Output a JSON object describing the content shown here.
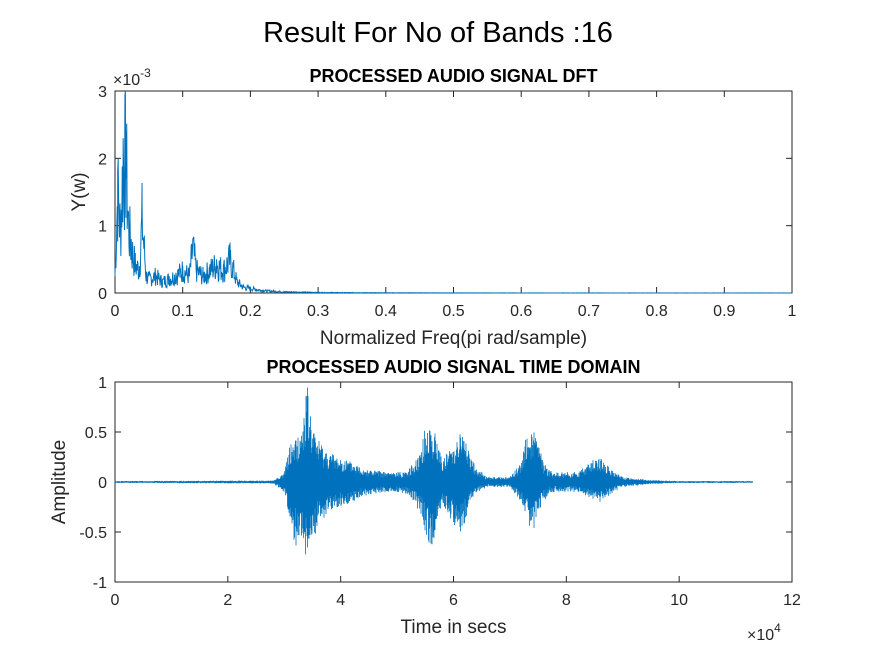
{
  "figure_title": "Result For No of Bands :16",
  "chart_data": [
    {
      "type": "line",
      "title": "PROCESSED AUDIO SIGNAL DFT",
      "xlabel": "Normalized Freq(pi rad/sample)",
      "ylabel": "Y(w)",
      "xlim": [
        0,
        1
      ],
      "ylim": [
        0,
        0.003
      ],
      "y_exponent_label": "×10",
      "y_exponent_power": "-3",
      "x_ticks": [
        "0",
        "0.1",
        "0.2",
        "0.3",
        "0.4",
        "0.5",
        "0.6",
        "0.7",
        "0.8",
        "0.9",
        "1"
      ],
      "y_ticks": [
        "0",
        "1",
        "2",
        "3"
      ],
      "x_tick_values": [
        0,
        0.1,
        0.2,
        0.3,
        0.4,
        0.5,
        0.6,
        0.7,
        0.8,
        0.9,
        1
      ],
      "y_tick_values": [
        0,
        0.001,
        0.002,
        0.003
      ],
      "grid": false,
      "line_color": "#0072BD",
      "series": [
        {
          "x": [
            0,
            0.004,
            0.008,
            0.012,
            0.016,
            0.02,
            0.024,
            0.03,
            0.036,
            0.04,
            0.046,
            0.05,
            0.06,
            0.07,
            0.08,
            0.09,
            0.1,
            0.11,
            0.115,
            0.12,
            0.13,
            0.14,
            0.15,
            0.16,
            0.17,
            0.18,
            0.19,
            0.2,
            0.22,
            0.25,
            0.3,
            0.35,
            0.4,
            0.5,
            0.6,
            0.7,
            0.8,
            0.9,
            1
          ],
          "y": [
            0.0003,
            0.0018,
            0.0011,
            0.0023,
            0.0024,
            0.0012,
            0.0008,
            0.0005,
            0.0004,
            0.0013,
            0.0003,
            0.00025,
            0.0003,
            0.0002,
            0.00025,
            0.0003,
            0.0004,
            0.0003,
            0.0008,
            0.0004,
            0.0003,
            0.0004,
            0.0005,
            0.0004,
            0.0006,
            0.0002,
            0.0001,
            8e-05,
            4e-05,
            2e-05,
            1e-05,
            6e-06,
            4e-06,
            2e-06,
            1e-06,
            1e-06,
            1e-06,
            1e-06,
            1e-06
          ]
        }
      ]
    },
    {
      "type": "line",
      "title": "PROCESSED AUDIO SIGNAL TIME DOMAIN",
      "xlabel": "Time in secs",
      "ylabel": "Amplitude",
      "xlim": [
        0,
        120000
      ],
      "ylim": [
        -1,
        1
      ],
      "x_exponent_label": "×10",
      "x_exponent_power": "4",
      "x_ticks": [
        "0",
        "2",
        "4",
        "6",
        "8",
        "10",
        "12"
      ],
      "y_ticks": [
        "-1",
        "-0.5",
        "0",
        "0.5",
        "1"
      ],
      "x_tick_values": [
        0,
        20000,
        40000,
        60000,
        80000,
        100000,
        120000
      ],
      "y_tick_values": [
        -1,
        -0.5,
        0,
        0.5,
        1
      ],
      "grid": false,
      "line_color": "#0072BD",
      "series": [
        {
          "envelope_x": [
            0,
            28000,
            30000,
            31000,
            32000,
            33000,
            34000,
            35000,
            36000,
            37000,
            38000,
            40000,
            42000,
            44000,
            46000,
            48000,
            50000,
            52000,
            54000,
            55000,
            56000,
            57000,
            58000,
            59000,
            60000,
            61000,
            62000,
            63000,
            64000,
            65000,
            66000,
            67000,
            68000,
            70000,
            72000,
            73000,
            74000,
            75000,
            76000,
            77000,
            78000,
            80000,
            82000,
            84000,
            86000,
            88000,
            90000,
            95000,
            100000,
            105000,
            113000
          ],
          "envelope_upper": [
            0.01,
            0.015,
            0.1,
            0.38,
            0.45,
            0.5,
            1.0,
            0.55,
            0.45,
            0.35,
            0.3,
            0.25,
            0.2,
            0.15,
            0.12,
            0.1,
            0.1,
            0.12,
            0.3,
            0.55,
            0.6,
            0.45,
            0.25,
            0.3,
            0.4,
            0.5,
            0.5,
            0.25,
            0.15,
            0.1,
            0.05,
            0.05,
            0.05,
            0.05,
            0.2,
            0.5,
            0.55,
            0.4,
            0.2,
            0.12,
            0.1,
            0.1,
            0.1,
            0.2,
            0.25,
            0.12,
            0.05,
            0.02,
            0.01,
            0.01,
            0.01
          ],
          "envelope_lower": [
            -0.01,
            -0.015,
            -0.1,
            -0.38,
            -0.65,
            -0.55,
            -0.85,
            -0.6,
            -0.45,
            -0.38,
            -0.3,
            -0.25,
            -0.2,
            -0.15,
            -0.12,
            -0.1,
            -0.1,
            -0.12,
            -0.3,
            -0.5,
            -0.7,
            -0.45,
            -0.25,
            -0.3,
            -0.45,
            -0.6,
            -0.4,
            -0.2,
            -0.12,
            -0.08,
            -0.05,
            -0.05,
            -0.05,
            -0.05,
            -0.2,
            -0.35,
            -0.55,
            -0.3,
            -0.2,
            -0.12,
            -0.1,
            -0.1,
            -0.1,
            -0.15,
            -0.2,
            -0.12,
            -0.05,
            -0.02,
            -0.01,
            -0.01,
            -0.01
          ]
        }
      ]
    }
  ]
}
